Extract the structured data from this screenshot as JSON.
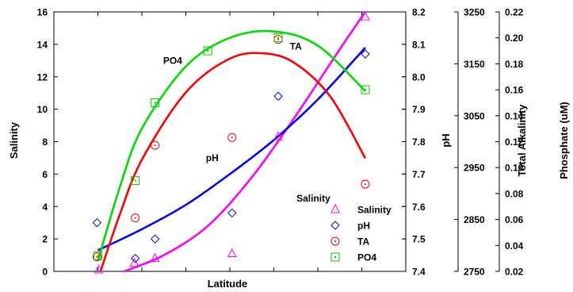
{
  "chart_data": {
    "type": "scatter",
    "title": "",
    "xlabel": "Latitude",
    "x": [
      1,
      2,
      3,
      4,
      5,
      6
    ],
    "axes": {
      "salinity": {
        "label": "Salinity",
        "ticks": [
          "0",
          "2",
          "4",
          "6",
          "8",
          "10",
          "12",
          "14",
          "16"
        ],
        "range": [
          0,
          16
        ]
      },
      "ph": {
        "label": "pH",
        "ticks": [
          "7.4",
          "7.5",
          "7.6",
          "7.7",
          "7.8",
          "7.9",
          "8.0",
          "8.1",
          "8.2"
        ],
        "range": [
          7.4,
          8.2
        ]
      },
      "total_alkalinity": {
        "label": "Total Alkalinity",
        "ticks": [
          "2750",
          "2850",
          "2950",
          "3050",
          "3150",
          "3250"
        ],
        "range": [
          2750,
          3250
        ]
      },
      "phosphate": {
        "label": "Phosphate (uM)",
        "ticks": [
          "0.02",
          "0.04",
          "0.06",
          "0.08",
          "0.10",
          "0.12",
          "0.14",
          "0.16",
          "0.18",
          "0.20",
          "0.22"
        ],
        "range": [
          0.02,
          0.22
        ]
      }
    },
    "series": [
      {
        "name": "Salinity",
        "axis": "salinity",
        "marker": "triangle",
        "color": "#ff00ff",
        "points": [
          [
            1.02,
            0.1
          ],
          [
            1.83,
            0.5
          ],
          [
            2.3,
            0.8
          ],
          [
            4.05,
            1.1
          ],
          [
            5.1,
            8.3
          ],
          [
            7.08,
            15.7
          ]
        ]
      },
      {
        "name": "pH",
        "axis": "ph",
        "marker": "diamond",
        "color": "#0000ff",
        "points": [
          [
            0.98,
            7.55
          ],
          [
            1.85,
            7.44
          ],
          [
            2.3,
            7.5
          ],
          [
            4.05,
            7.58
          ],
          [
            5.1,
            7.94
          ],
          [
            7.08,
            8.07
          ]
        ]
      },
      {
        "name": "TA",
        "axis": "total_alkalinity",
        "marker": "circle",
        "color": "#ff0000",
        "points": [
          [
            0.98,
            2778
          ],
          [
            1.85,
            2853
          ],
          [
            2.3,
            2993
          ],
          [
            4.05,
            3008
          ],
          [
            5.1,
            3197
          ],
          [
            7.08,
            2918
          ]
        ]
      },
      {
        "name": "PO4",
        "axis": "phosphate",
        "marker": "square",
        "color": "#00cc00",
        "points": [
          [
            1.0,
            0.032
          ],
          [
            1.85,
            0.09
          ],
          [
            2.3,
            0.15
          ],
          [
            3.5,
            0.19
          ],
          [
            5.1,
            0.2
          ],
          [
            7.08,
            0.16
          ]
        ]
      }
    ],
    "curves": [
      {
        "name": "Salinity",
        "axis": "salinity",
        "color": "#ff00ff",
        "points": [
          [
            1.6,
            0
          ],
          [
            2.5,
            1.0
          ],
          [
            3.5,
            2.8
          ],
          [
            4.5,
            5.8
          ],
          [
            5.5,
            9.6
          ],
          [
            6.5,
            13.7
          ],
          [
            7.08,
            16
          ]
        ]
      },
      {
        "name": "pH",
        "axis": "ph",
        "color": "#0000ff",
        "points": [
          [
            1.0,
            7.465
          ],
          [
            2.0,
            7.53
          ],
          [
            3.0,
            7.605
          ],
          [
            4.0,
            7.7
          ],
          [
            5.0,
            7.805
          ],
          [
            6.0,
            7.93
          ],
          [
            7.08,
            8.09
          ]
        ]
      },
      {
        "name": "TA",
        "axis": "total_alkalinity",
        "color": "#ff0000",
        "points": [
          [
            1.06,
            2750
          ],
          [
            1.5,
            2860
          ],
          [
            2.0,
            2965
          ],
          [
            3.0,
            3095
          ],
          [
            4.0,
            3160
          ],
          [
            4.8,
            3170
          ],
          [
            5.5,
            3150
          ],
          [
            6.3,
            3085
          ],
          [
            7.08,
            2968
          ]
        ]
      },
      {
        "name": "PO4",
        "axis": "phosphate",
        "color": "#00dd00",
        "points": [
          [
            1.0,
            0.028
          ],
          [
            1.5,
            0.085
          ],
          [
            2.0,
            0.13
          ],
          [
            3.0,
            0.178
          ],
          [
            4.0,
            0.2
          ],
          [
            5.0,
            0.205
          ],
          [
            6.0,
            0.194
          ],
          [
            7.08,
            0.159
          ]
        ]
      }
    ],
    "annotations": [
      {
        "text": "PO4",
        "axis": "phosphate",
        "x": 2.7,
        "y": 0.18
      },
      {
        "text": "TA",
        "axis": "total_alkalinity",
        "x": 5.5,
        "y": 3177
      },
      {
        "text": "pH",
        "axis": "ph",
        "x": 3.6,
        "y": 7.74
      },
      {
        "text": "Salinity",
        "axis": "salinity",
        "x": 5.9,
        "y": 4.3
      }
    ],
    "legend": {
      "placement": "bottom-right",
      "entries": [
        {
          "label": "Salinity",
          "marker": "triangle",
          "color": "#ff00ff"
        },
        {
          "label": "pH",
          "marker": "diamond",
          "color": "#0000ff"
        },
        {
          "label": "TA",
          "marker": "circle",
          "color": "#ff0000"
        },
        {
          "label": "PO4",
          "marker": "square",
          "color": "#00cc00"
        }
      ]
    },
    "xlim": [
      0,
      8
    ],
    "grid": false
  }
}
